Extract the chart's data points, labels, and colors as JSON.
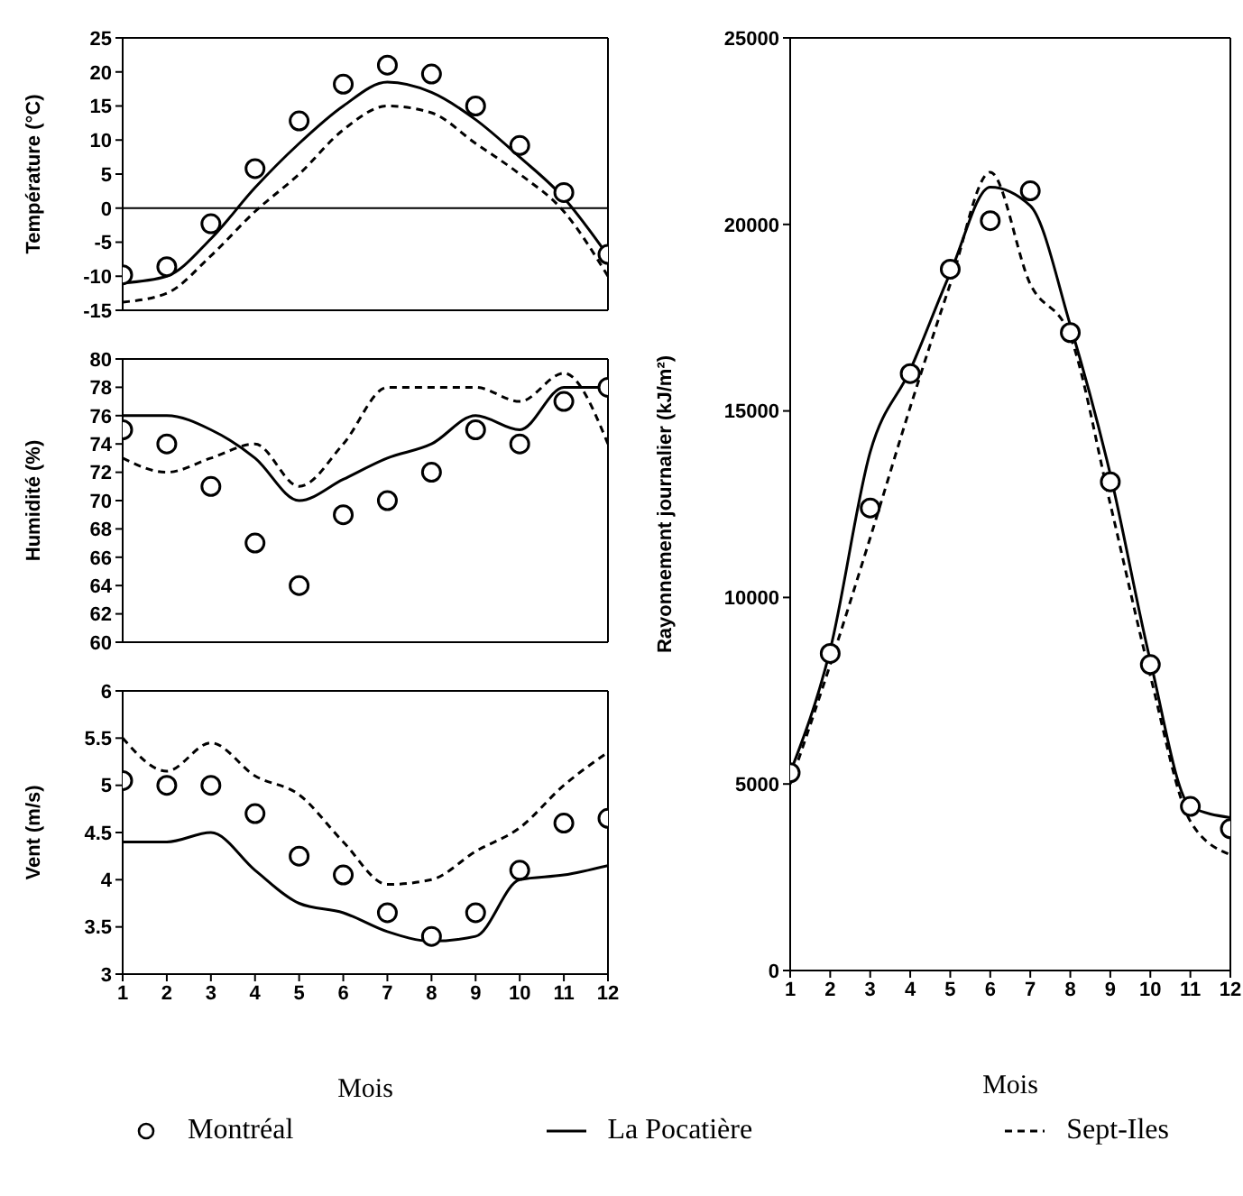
{
  "chart_data": [
    {
      "type": "line",
      "ylabel": "Température (°C)",
      "x": [
        1,
        2,
        3,
        4,
        5,
        6,
        7,
        8,
        9,
        10,
        11,
        12
      ],
      "xlim": [
        1,
        12
      ],
      "xticks": [
        1,
        2,
        3,
        4,
        5,
        6,
        7,
        8,
        9,
        10,
        11,
        12
      ],
      "ylim": [
        -15,
        25
      ],
      "yticks": [
        -15,
        -10,
        -5,
        0,
        5,
        10,
        15,
        20,
        25
      ],
      "tick_labels": "y",
      "ref_lines": [
        {
          "axis": "y",
          "value": 0,
          "color": "#000000",
          "line_style": "solid"
        }
      ],
      "series": [
        {
          "type": "scatter",
          "marker": "circle",
          "color": "#000000",
          "values": [
            -9.8,
            -8.6,
            -2.3,
            5.8,
            12.8,
            18.2,
            21,
            19.7,
            15,
            9.2,
            2.3,
            -6.8
          ]
        },
        {
          "type": "line",
          "line_style": "solid",
          "color": "#000000",
          "values": [
            -11,
            -10,
            -4.5,
            3,
            9.5,
            15,
            18.5,
            17,
            13,
            7.5,
            1.5,
            -7
          ]
        },
        {
          "type": "line",
          "line_style": "dashed",
          "color": "#000000",
          "values": [
            -13.8,
            -12.5,
            -7,
            -0.5,
            5,
            11.5,
            15,
            14,
            9.5,
            5,
            -0.5,
            -10
          ]
        }
      ]
    },
    {
      "type": "line",
      "ylabel": "Humidité (%)",
      "x": [
        1,
        2,
        3,
        4,
        5,
        6,
        7,
        8,
        9,
        10,
        11,
        12
      ],
      "xlim": [
        1,
        12
      ],
      "xticks": [
        1,
        2,
        3,
        4,
        5,
        6,
        7,
        8,
        9,
        10,
        11,
        12
      ],
      "ylim": [
        60,
        80
      ],
      "yticks": [
        60,
        62,
        64,
        66,
        68,
        70,
        72,
        74,
        76,
        78,
        80
      ],
      "tick_labels": "y",
      "series": [
        {
          "type": "scatter",
          "marker": "circle",
          "color": "#000000",
          "values": [
            75,
            74,
            71,
            67,
            64,
            69,
            70,
            72,
            75,
            74,
            77,
            78
          ]
        },
        {
          "type": "line",
          "line_style": "solid",
          "color": "#000000",
          "values": [
            76,
            76,
            75,
            73,
            70,
            71.5,
            73,
            74,
            76,
            75,
            78,
            78
          ]
        },
        {
          "type": "line",
          "line_style": "dashed",
          "color": "#000000",
          "values": [
            73,
            72,
            73,
            74,
            71,
            74,
            78,
            78,
            78,
            77,
            79,
            74
          ]
        }
      ]
    },
    {
      "type": "line",
      "ylabel": "Vent (m/s)",
      "xlabel": "Mois",
      "x": [
        1,
        2,
        3,
        4,
        5,
        6,
        7,
        8,
        9,
        10,
        11,
        12
      ],
      "xlim": [
        1,
        12
      ],
      "xticks": [
        1,
        2,
        3,
        4,
        5,
        6,
        7,
        8,
        9,
        10,
        11,
        12
      ],
      "ylim": [
        3,
        6
      ],
      "yticks": [
        3,
        3.5,
        4,
        4.5,
        5,
        5.5,
        6
      ],
      "series": [
        {
          "type": "scatter",
          "marker": "circle",
          "color": "#000000",
          "values": [
            5.05,
            5,
            5,
            4.7,
            4.25,
            4.05,
            3.65,
            3.4,
            3.65,
            4.1,
            4.6,
            4.65
          ]
        },
        {
          "type": "line",
          "line_style": "solid",
          "color": "#000000",
          "values": [
            4.4,
            4.4,
            4.5,
            4.1,
            3.75,
            3.65,
            3.45,
            3.35,
            3.4,
            4,
            4.05,
            4.15
          ]
        },
        {
          "type": "line",
          "line_style": "dashed",
          "color": "#000000",
          "values": [
            5.5,
            5.15,
            5.45,
            5.1,
            4.9,
            4.4,
            3.95,
            4,
            4.3,
            4.55,
            5,
            5.35
          ]
        }
      ]
    },
    {
      "type": "line",
      "ylabel": "Rayonnement journalier (kJ/m²)",
      "xlabel": "Mois",
      "x": [
        1,
        2,
        3,
        4,
        5,
        6,
        7,
        8,
        9,
        10,
        11,
        12
      ],
      "xlim": [
        1,
        12
      ],
      "xticks": [
        1,
        2,
        3,
        4,
        5,
        6,
        7,
        8,
        9,
        10,
        11,
        12
      ],
      "ylim": [
        0,
        25000
      ],
      "yticks": [
        0,
        5000,
        10000,
        15000,
        20000,
        25000
      ],
      "legend": "bottom",
      "series": [
        {
          "type": "scatter",
          "name": "Montréal",
          "marker": "circle",
          "color": "#000000",
          "values": [
            5300,
            8500,
            12400,
            16000,
            18800,
            20100,
            20900,
            17100,
            13100,
            8200,
            4400,
            3800
          ]
        },
        {
          "type": "line",
          "name": "La Pocatière",
          "line_style": "solid",
          "color": "#000000",
          "values": [
            5300,
            8600,
            13900,
            16100,
            18700,
            21000,
            20500,
            17300,
            13300,
            8300,
            4400,
            4100
          ]
        },
        {
          "type": "line",
          "name": "Sept-Iles",
          "line_style": "dashed",
          "color": "#000000",
          "values": [
            5000,
            8200,
            11600,
            15100,
            18400,
            21400,
            18400,
            17000,
            12500,
            7900,
            4000,
            3100
          ]
        }
      ]
    }
  ]
}
